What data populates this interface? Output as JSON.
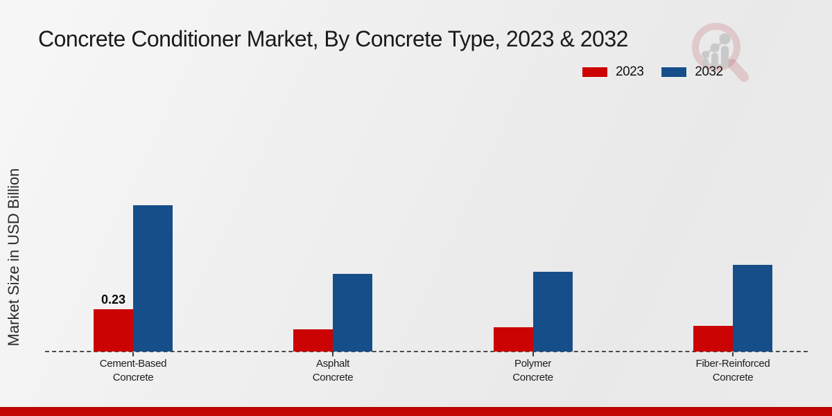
{
  "header": {
    "title": "Concrete Conditioner Market, By Concrete Type, 2023 & 2032"
  },
  "y_axis": {
    "label": "Market Size in USD Billion"
  },
  "chart_data": {
    "type": "bar",
    "title": "Concrete Conditioner Market, By Concrete Type, 2023 & 2032",
    "xlabel": "",
    "ylabel": "Market Size in USD Billion",
    "categories": [
      "Cement-Based\nConcrete",
      "Asphalt\nConcrete",
      "Polymer\nConcrete",
      "Fiber-Reinforced\nConcrete"
    ],
    "series": [
      {
        "name": "2023",
        "color": "#cb0303",
        "values": [
          0.23,
          0.12,
          0.13,
          0.14
        ],
        "data_labels": [
          "0.23",
          "",
          "",
          ""
        ]
      },
      {
        "name": "2032",
        "color": "#164e8a",
        "values": [
          0.79,
          0.42,
          0.43,
          0.47
        ],
        "data_labels": [
          "",
          "",
          "",
          ""
        ]
      }
    ],
    "ylim": [
      0,
      0.85
    ],
    "grid": false,
    "legend_position": "top-right",
    "baseline_style": "dashed",
    "units": "USD Billion"
  },
  "colors": {
    "series_2023": "#cb0303",
    "series_2032": "#164e8a",
    "footer_band": "#c50505",
    "axis_dash": "#4b4b4b"
  },
  "branding": {
    "logo_name": "magnifier-growth-chart-logo"
  }
}
